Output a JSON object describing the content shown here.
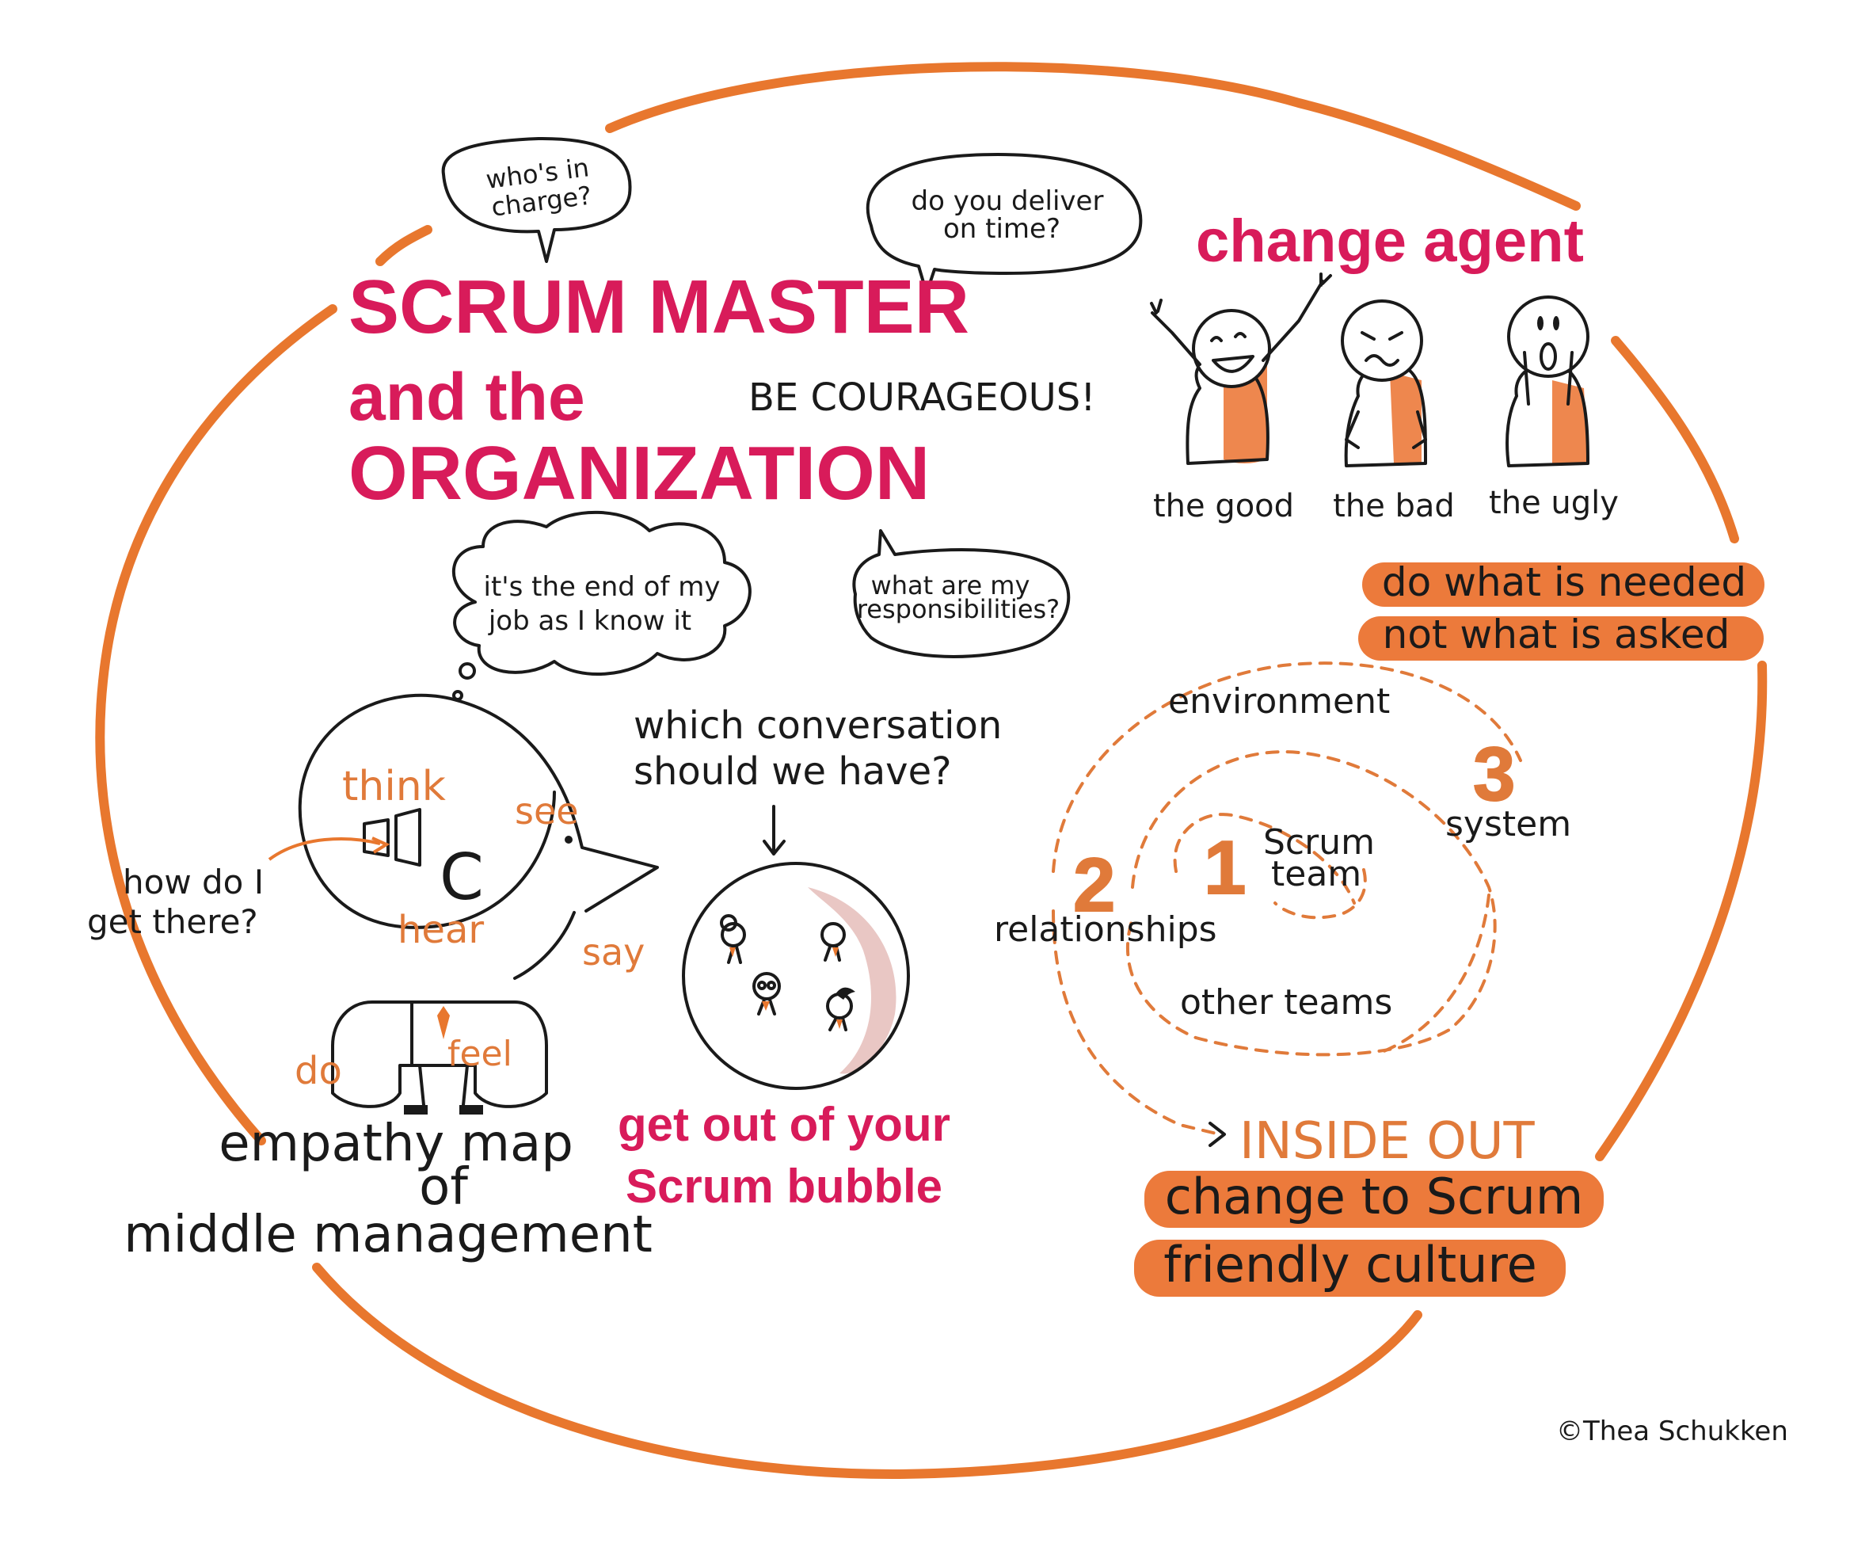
{
  "title": {
    "line1": "SCRUM MASTER",
    "line2": "and the",
    "line3": "ORGANIZATION"
  },
  "be_courageous": "BE COURAGEOUS!",
  "speech": {
    "whos_in_charge_1": "who's in",
    "whos_in_charge_2": "charge?",
    "deliver_1": "do you deliver",
    "deliver_2": "on time?",
    "end_of_job_1": "it's the end of my",
    "end_of_job_2": "job as I know it",
    "responsibilities_1": "what are my",
    "responsibilities_2": "responsibilities?"
  },
  "change_agent": {
    "heading": "change agent",
    "good": "the good",
    "bad": "the bad",
    "ugly": "the ugly",
    "needed": "do what is needed",
    "asked": "not what is asked"
  },
  "empathy": {
    "think": "think",
    "see": "see",
    "hear": "hear",
    "say": "say",
    "feel": "feel",
    "do": "do",
    "c": "C",
    "how_1": "how do I",
    "how_2": "get there?",
    "caption_1": "empathy map",
    "caption_2": "of",
    "caption_3": "middle management"
  },
  "bubble": {
    "question_1": "which conversation",
    "question_2": "should we have?",
    "caption_1": "get out of your",
    "caption_2": "Scrum bubble"
  },
  "circles": {
    "environment": "environment",
    "n1": "1",
    "scrum_1": "Scrum",
    "scrum_2": "team",
    "n2": "2",
    "relationships": "relationships",
    "other_teams": "other teams",
    "n3": "3",
    "system": "system",
    "inside_out": "INSIDE OUT",
    "change_1": "change to Scrum",
    "change_2": "friendly culture"
  },
  "copyright": "©Thea Schukken",
  "colors": {
    "pink": "#d81b5a",
    "orange": "#e8772e",
    "highlight": "#ec7a3b",
    "ink": "#1a1a1a"
  }
}
